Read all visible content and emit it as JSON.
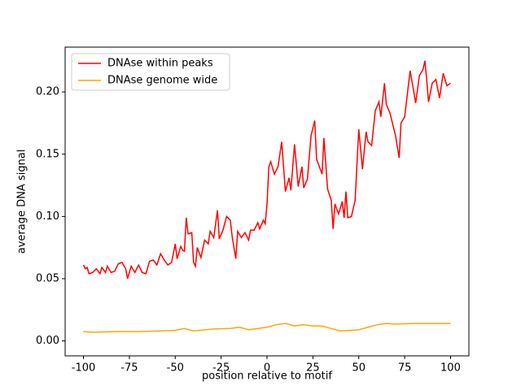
{
  "chart_data": {
    "type": "line",
    "xlabel": "position relative to motif",
    "ylabel": "average DNA signal",
    "xlim": [
      -110,
      110
    ],
    "xticks": [
      -100,
      -75,
      -50,
      -25,
      0,
      25,
      50,
      75,
      100
    ],
    "ylim": [
      -0.012,
      0.236
    ],
    "yticks": [
      {
        "value": 0,
        "label": "0.00"
      },
      {
        "value": 0.05,
        "label": "0.05"
      },
      {
        "value": 0.1,
        "label": "0.10"
      },
      {
        "value": 0.15,
        "label": "0.15"
      },
      {
        "value": 0.2,
        "label": "0.20"
      }
    ],
    "legend": "upper left",
    "series": [
      {
        "name": "DNAse within peaks",
        "color": "#ff0000",
        "x": [
          -100,
          -99,
          -98,
          -97,
          -95,
          -93,
          -91,
          -90,
          -88,
          -87,
          -85,
          -83,
          -81,
          -79,
          -77,
          -76,
          -74,
          -72,
          -70,
          -68,
          -66,
          -64,
          -62,
          -60,
          -58,
          -56,
          -54,
          -52,
          -50,
          -49,
          -47,
          -46,
          -45,
          -44,
          -43,
          -41,
          -40,
          -39,
          -38,
          -36,
          -34,
          -32,
          -31,
          -29,
          -27,
          -26,
          -24,
          -22,
          -20,
          -19,
          -17,
          -16,
          -14,
          -12,
          -10,
          -9,
          -7,
          -5,
          -4,
          -2,
          -1,
          0,
          1,
          2,
          4,
          6,
          8,
          10,
          12,
          13,
          15,
          17,
          19,
          20,
          22,
          24,
          26,
          27,
          30,
          31,
          33,
          35,
          36,
          37,
          39,
          41,
          42,
          43,
          44,
          46,
          48,
          50,
          52,
          54,
          55,
          57,
          59,
          61,
          62,
          64,
          65,
          67,
          70,
          72,
          73,
          75,
          77,
          78,
          80,
          81,
          83,
          85,
          86,
          87,
          88,
          90,
          92,
          94,
          96,
          98,
          100
        ],
        "values": [
          0.061,
          0.058,
          0.059,
          0.054,
          0.055,
          0.058,
          0.054,
          0.059,
          0.055,
          0.06,
          0.055,
          0.056,
          0.062,
          0.063,
          0.058,
          0.05,
          0.06,
          0.055,
          0.061,
          0.055,
          0.054,
          0.064,
          0.065,
          0.061,
          0.07,
          0.065,
          0.061,
          0.063,
          0.078,
          0.066,
          0.076,
          0.073,
          0.072,
          0.099,
          0.086,
          0.087,
          0.063,
          0.06,
          0.075,
          0.067,
          0.081,
          0.078,
          0.088,
          0.083,
          0.105,
          0.082,
          0.089,
          0.1,
          0.097,
          0.084,
          0.066,
          0.088,
          0.083,
          0.087,
          0.081,
          0.089,
          0.089,
          0.095,
          0.09,
          0.097,
          0.094,
          0.11,
          0.14,
          0.144,
          0.134,
          0.14,
          0.16,
          0.12,
          0.131,
          0.121,
          0.158,
          0.124,
          0.14,
          0.123,
          0.13,
          0.165,
          0.177,
          0.146,
          0.134,
          0.163,
          0.122,
          0.113,
          0.09,
          0.11,
          0.102,
          0.112,
          0.099,
          0.12,
          0.099,
          0.1,
          0.113,
          0.17,
          0.138,
          0.168,
          0.16,
          0.157,
          0.185,
          0.192,
          0.18,
          0.207,
          0.19,
          0.183,
          0.165,
          0.147,
          0.175,
          0.18,
          0.205,
          0.217,
          0.2,
          0.191,
          0.213,
          0.218,
          0.225,
          0.21,
          0.192,
          0.207,
          0.21,
          0.195,
          0.215,
          0.205,
          0.207
        ]
      },
      {
        "name": "DNAse genome wide",
        "color": "#ffa500",
        "x": [
          -100,
          -95,
          -90,
          -80,
          -70,
          -60,
          -50,
          -45,
          -40,
          -30,
          -20,
          -15,
          -10,
          0,
          5,
          10,
          15,
          20,
          25,
          30,
          35,
          40,
          50,
          55,
          60,
          65,
          70,
          80,
          90,
          100
        ],
        "values": [
          0.0075,
          0.007,
          0.0072,
          0.0075,
          0.0075,
          0.008,
          0.0085,
          0.01,
          0.008,
          0.0095,
          0.01,
          0.011,
          0.009,
          0.011,
          0.013,
          0.014,
          0.012,
          0.013,
          0.012,
          0.012,
          0.01,
          0.008,
          0.009,
          0.011,
          0.013,
          0.014,
          0.0135,
          0.014,
          0.014,
          0.014
        ]
      }
    ]
  }
}
